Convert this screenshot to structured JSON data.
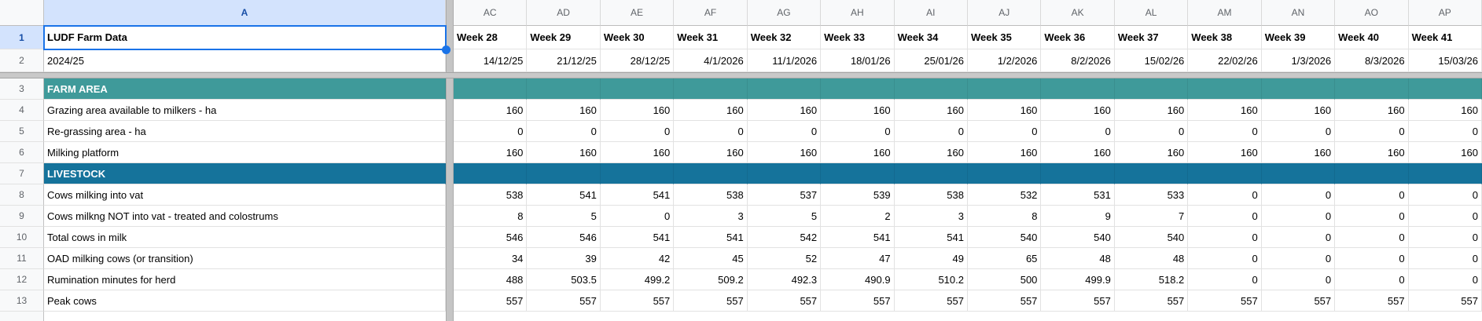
{
  "columns": {
    "label_column_letter": "A",
    "data_column_letters": [
      "AC",
      "AD",
      "AE",
      "AF",
      "AG",
      "AH",
      "AI",
      "AJ",
      "AK",
      "AL",
      "AM",
      "AN",
      "AO",
      "AP"
    ]
  },
  "selection": {
    "cell": "A1",
    "value": "LUDF Farm Data",
    "accent_color": "#1a73e8",
    "selected_header_bg": "#d3e3fd"
  },
  "colors": {
    "farm_area_section": "#3f9a9a",
    "livestock_section": "#15739b",
    "hidden_band_gray": "#c5c5c5"
  },
  "rows": [
    {
      "num": "1",
      "kind": "title",
      "label": "LUDF Farm Data",
      "cells": [
        "Week 28",
        "Week 29",
        "Week 30",
        "Week 31",
        "Week 32",
        "Week 33",
        "Week 34",
        "Week 35",
        "Week 36",
        "Week 37",
        "Week 38",
        "Week 39",
        "Week 40",
        "Week 41"
      ]
    },
    {
      "num": "2",
      "kind": "dates",
      "label": "2024/25",
      "cells": [
        "14/12/25",
        "21/12/25",
        "28/12/25",
        "4/1/2026",
        "11/1/2026",
        "18/01/26",
        "25/01/26",
        "1/2/2026",
        "8/2/2026",
        "15/02/26",
        "22/02/26",
        "1/3/2026",
        "8/3/2026",
        "15/03/26"
      ]
    },
    {
      "kind": "hidden_row_band"
    },
    {
      "num": "3",
      "kind": "section",
      "label": "FARM AREA",
      "color": "#3f9a9a",
      "cells": [
        "",
        "",
        "",
        "",
        "",
        "",
        "",
        "",
        "",
        "",
        "",
        "",
        "",
        ""
      ]
    },
    {
      "num": "4",
      "kind": "data",
      "label": "Grazing area available to milkers - ha",
      "cells": [
        "160",
        "160",
        "160",
        "160",
        "160",
        "160",
        "160",
        "160",
        "160",
        "160",
        "160",
        "160",
        "160",
        "160"
      ]
    },
    {
      "num": "5",
      "kind": "data",
      "label": "Re-grassing area - ha",
      "cells": [
        "0",
        "0",
        "0",
        "0",
        "0",
        "0",
        "0",
        "0",
        "0",
        "0",
        "0",
        "0",
        "0",
        "0"
      ]
    },
    {
      "num": "6",
      "kind": "data",
      "label": "Milking platform",
      "cells": [
        "160",
        "160",
        "160",
        "160",
        "160",
        "160",
        "160",
        "160",
        "160",
        "160",
        "160",
        "160",
        "160",
        "160"
      ]
    },
    {
      "num": "7",
      "kind": "section",
      "label": "LIVESTOCK",
      "color": "#15739b",
      "cells": [
        "",
        "",
        "",
        "",
        "",
        "",
        "",
        "",
        "",
        "",
        "",
        "",
        "",
        ""
      ]
    },
    {
      "num": "8",
      "kind": "data",
      "label": "Cows milking into vat",
      "cells": [
        "538",
        "541",
        "541",
        "538",
        "537",
        "539",
        "538",
        "532",
        "531",
        "533",
        "0",
        "0",
        "0",
        "0"
      ]
    },
    {
      "num": "9",
      "kind": "data",
      "label": "Cows milkng NOT into vat - treated and colostrums",
      "cells": [
        "8",
        "5",
        "0",
        "3",
        "5",
        "2",
        "3",
        "8",
        "9",
        "7",
        "0",
        "0",
        "0",
        "0"
      ]
    },
    {
      "num": "10",
      "kind": "data",
      "label": "Total cows in milk",
      "cells": [
        "546",
        "546",
        "541",
        "541",
        "542",
        "541",
        "541",
        "540",
        "540",
        "540",
        "0",
        "0",
        "0",
        "0"
      ]
    },
    {
      "num": "11",
      "kind": "data",
      "label": "OAD milking cows (or transition)",
      "cells": [
        "34",
        "39",
        "42",
        "45",
        "52",
        "47",
        "49",
        "65",
        "48",
        "48",
        "0",
        "0",
        "0",
        "0"
      ]
    },
    {
      "num": "12",
      "kind": "data",
      "label": "Rumination minutes for herd",
      "cells": [
        "488",
        "503.5",
        "499.2",
        "509.2",
        "492.3",
        "490.9",
        "510.2",
        "500",
        "499.9",
        "518.2",
        "0",
        "0",
        "0",
        "0"
      ]
    },
    {
      "num": "13",
      "kind": "data",
      "label": "Peak cows",
      "cells": [
        "557",
        "557",
        "557",
        "557",
        "557",
        "557",
        "557",
        "557",
        "557",
        "557",
        "557",
        "557",
        "557",
        "557"
      ]
    }
  ]
}
